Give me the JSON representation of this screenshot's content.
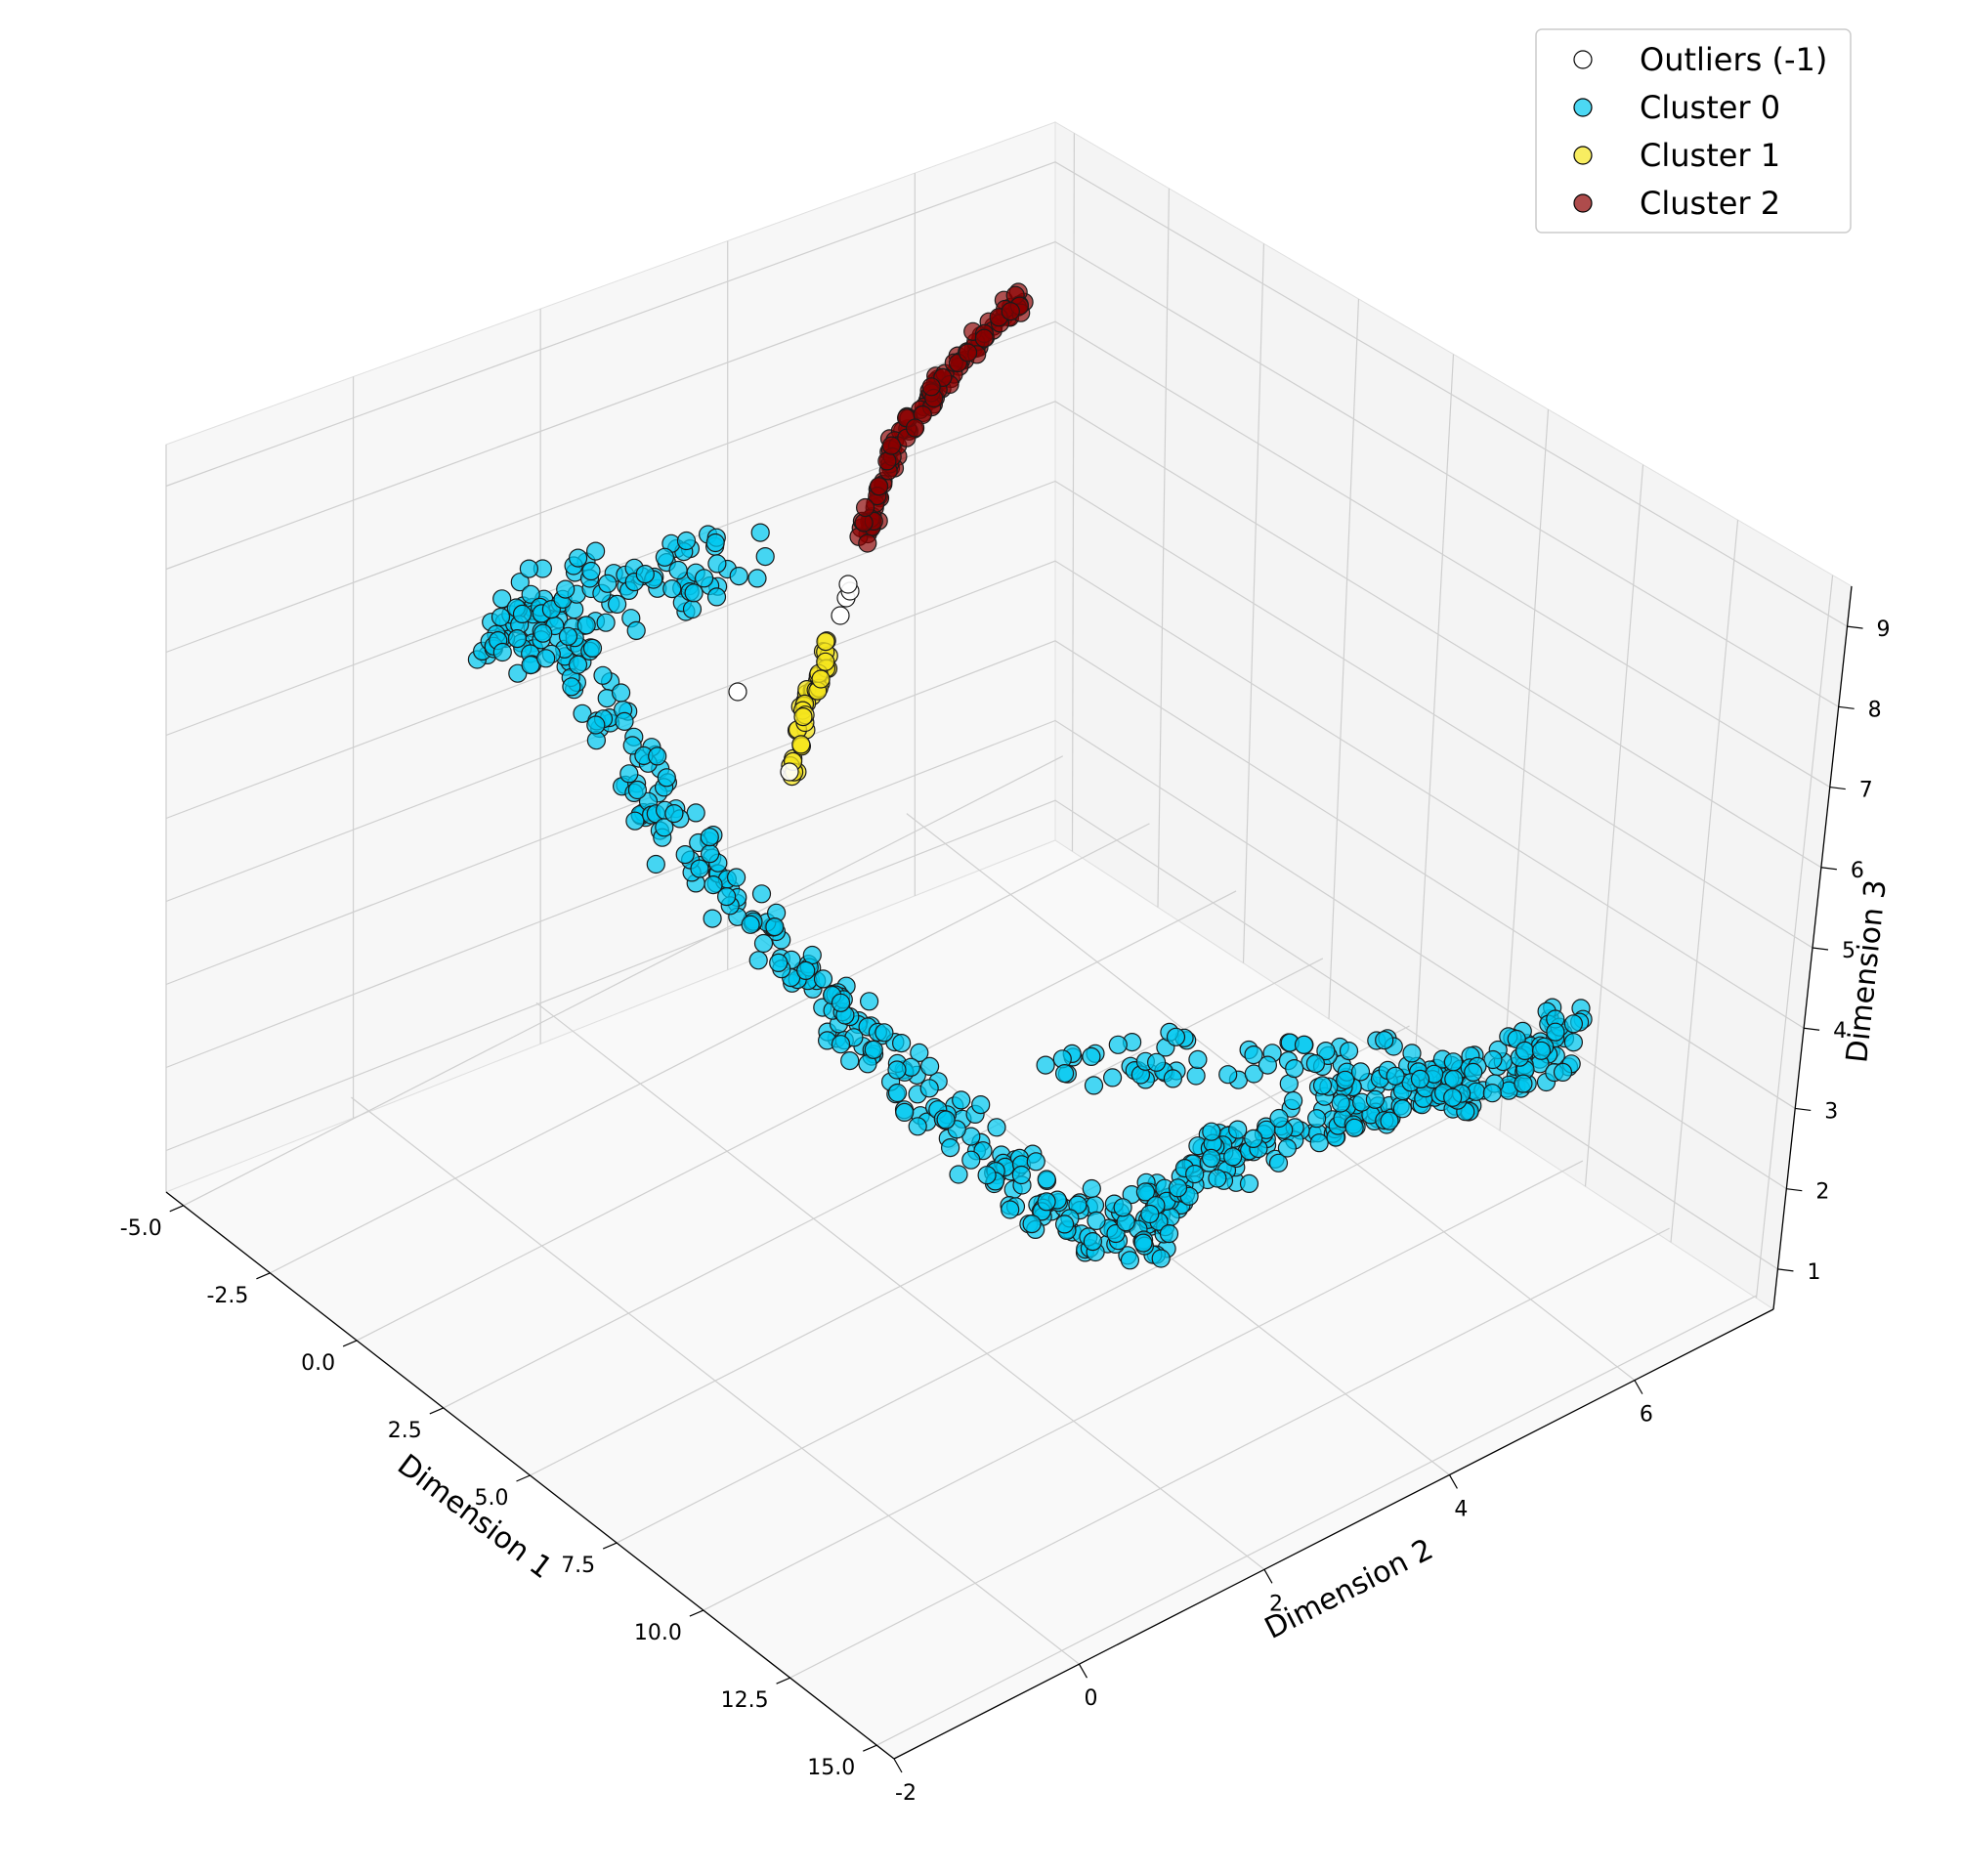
{
  "chart_data": {
    "type": "scatter",
    "title": "",
    "xlabel": "Dimension 1",
    "ylabel": "Dimension 2",
    "zlabel": "Dimension 3",
    "xlim": [
      -5.5,
      15.5
    ],
    "ylim": [
      -2,
      7.5
    ],
    "zlim": [
      0.5,
      9.5
    ],
    "x_ticks": [
      "-5.0",
      "-2.5",
      "0.0",
      "2.5",
      "5.0",
      "7.5",
      "10.0",
      "12.5",
      "15.0"
    ],
    "y_ticks": [
      "-2",
      "0",
      "2",
      "4",
      "6"
    ],
    "z_ticks": [
      "1",
      "2",
      "3",
      "4",
      "5",
      "6",
      "7",
      "8",
      "9"
    ],
    "grid": true,
    "legend_position": "top-right",
    "series": [
      {
        "name": "Outliers (-1)",
        "color": "#ffffff"
      },
      {
        "name": "Cluster 0",
        "color": "#00c8f0"
      },
      {
        "name": "Cluster 1",
        "color": "#f5e61e"
      },
      {
        "name": "Cluster 2",
        "color": "#8b0000"
      }
    ]
  }
}
